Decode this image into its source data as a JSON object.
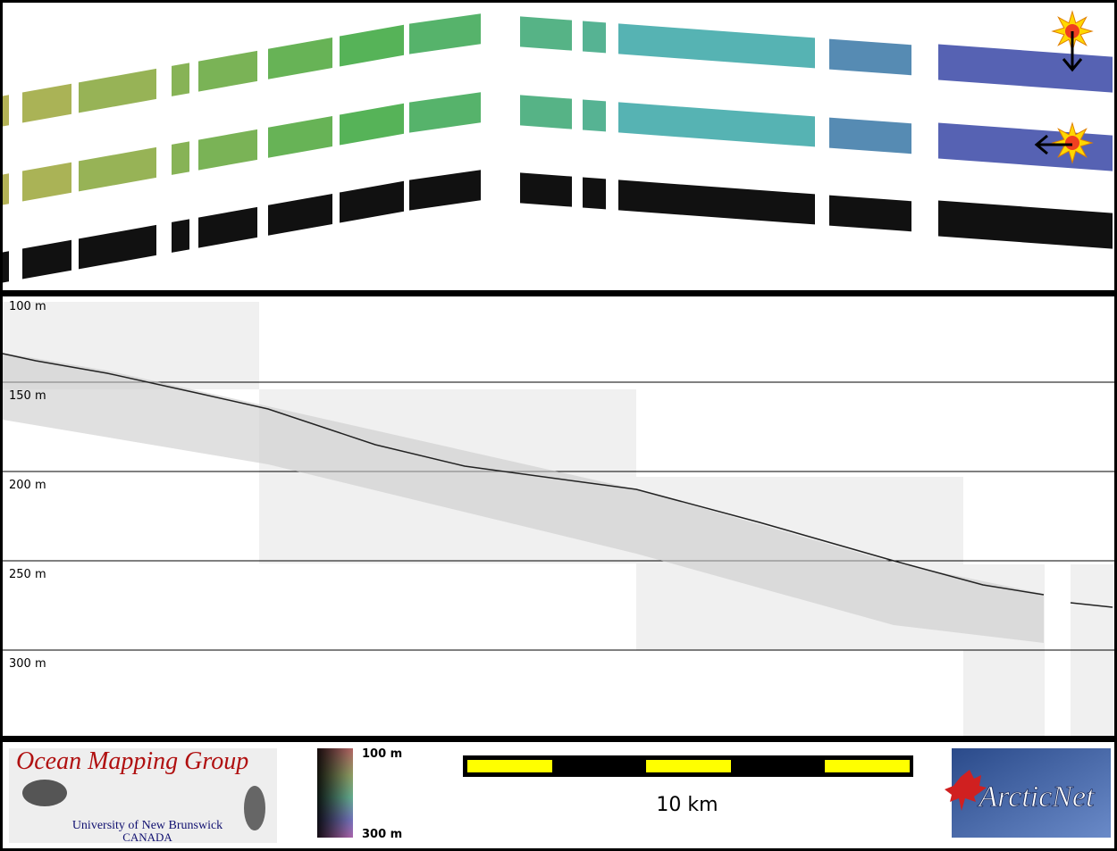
{
  "depth_labels": [
    "100 m",
    "150 m",
    "200 m",
    "250 m",
    "300 m"
  ],
  "logo": {
    "title": "Ocean Mapping Group",
    "university": "University of New Brunswick",
    "country": "CANADA"
  },
  "colorbar": {
    "top": "100 m",
    "bottom": "300 m"
  },
  "scale_bar": {
    "label": "10 km"
  },
  "partner_logo": {
    "title": "ArcticNet"
  }
}
